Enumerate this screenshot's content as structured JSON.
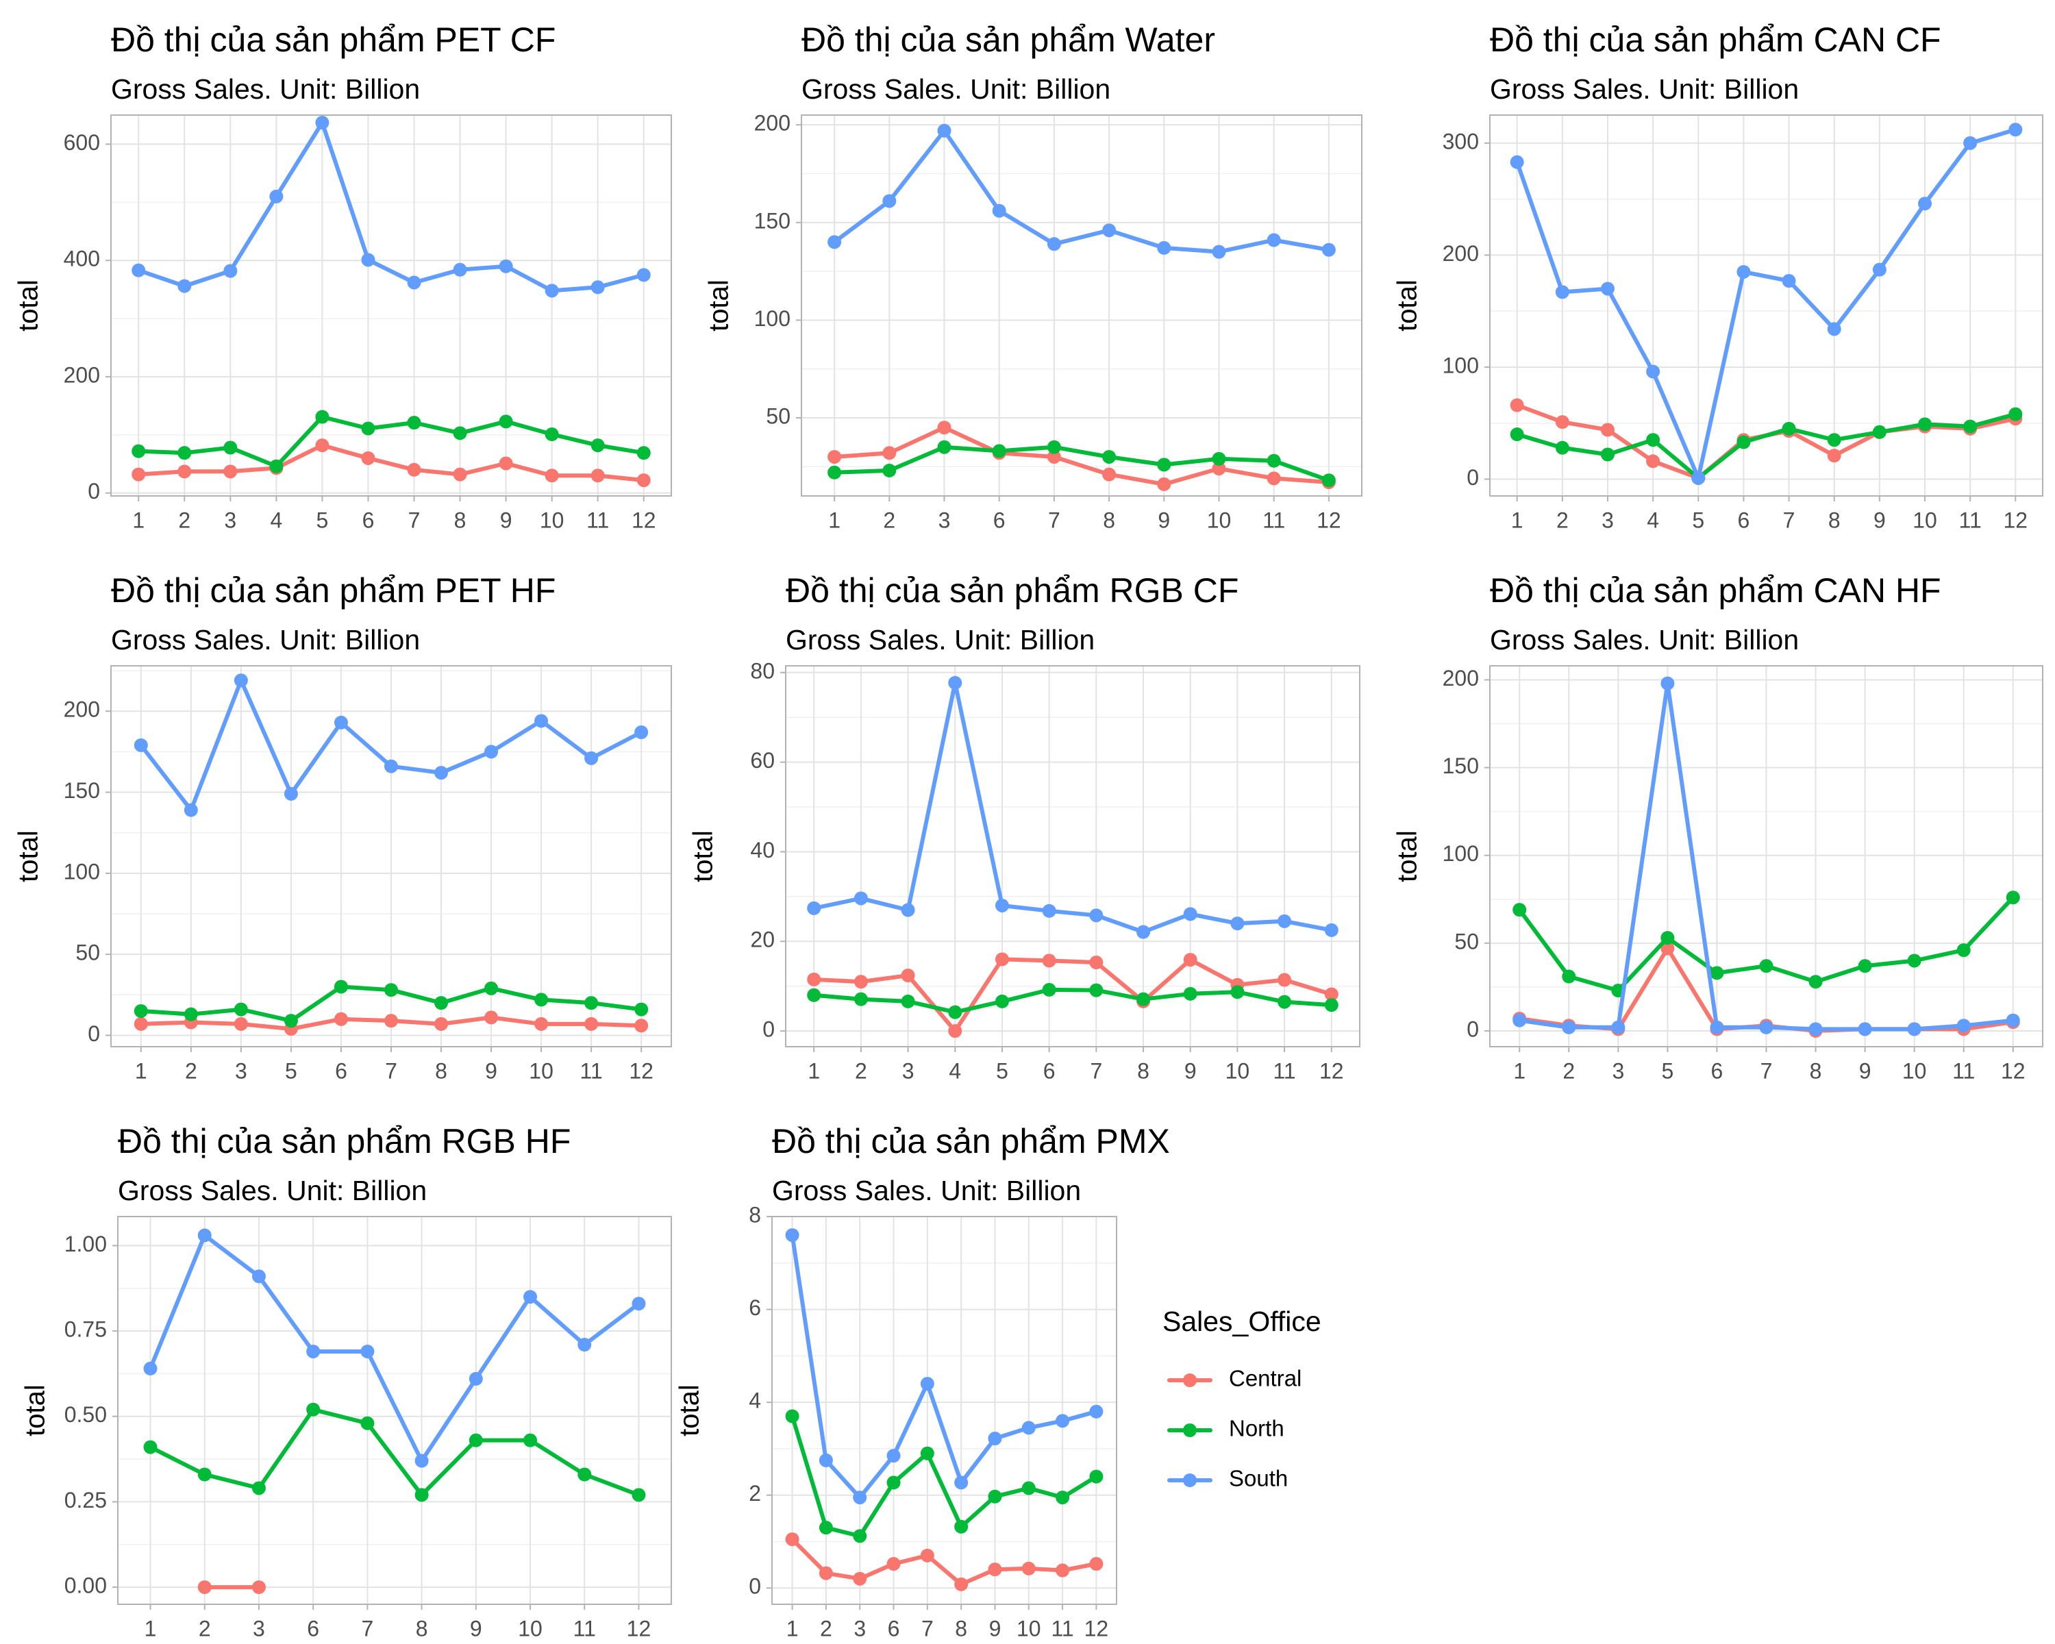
{
  "colors": {
    "Central": "#F8766D",
    "North": "#00BA38",
    "South": "#619CFF"
  },
  "legend": {
    "title": "Sales_Office",
    "entries": [
      "Central",
      "North",
      "South"
    ]
  },
  "chart_data": [
    {
      "type": "line",
      "title": "Đồ thị của sản phẩm PET CF",
      "subtitle": "Gross Sales. Unit: Billion",
      "ylabel": "total",
      "x": [
        1,
        2,
        3,
        4,
        5,
        6,
        7,
        8,
        9,
        10,
        11,
        12
      ],
      "ylim": [
        -5,
        650
      ],
      "yticks": [
        0,
        200,
        400,
        600
      ],
      "ytick_labels": [
        "0",
        "200",
        "400",
        "600"
      ],
      "series": [
        {
          "name": "Central",
          "values": [
            32,
            37,
            37,
            43,
            82,
            60,
            40,
            32,
            51,
            30,
            30,
            22
          ]
        },
        {
          "name": "North",
          "values": [
            72,
            69,
            78,
            46,
            131,
            111,
            121,
            103,
            123,
            101,
            82,
            69
          ]
        },
        {
          "name": "South",
          "values": [
            383,
            356,
            382,
            510,
            637,
            401,
            362,
            384,
            390,
            348,
            354,
            375
          ]
        }
      ]
    },
    {
      "type": "line",
      "title": "Đồ thị của sản phẩm Water",
      "subtitle": "Gross Sales. Unit: Billion",
      "ylabel": "total",
      "x": [
        1,
        2,
        3,
        6,
        7,
        8,
        9,
        10,
        11,
        12
      ],
      "ylim": [
        10,
        205
      ],
      "yticks": [
        50,
        100,
        150,
        200
      ],
      "ytick_labels": [
        "50",
        "100",
        "150",
        "200"
      ],
      "series": [
        {
          "name": "Central",
          "values": [
            30,
            32,
            45,
            32,
            30,
            21,
            16,
            24,
            19,
            17
          ]
        },
        {
          "name": "North",
          "values": [
            22,
            23,
            35,
            33,
            35,
            30,
            26,
            29,
            28,
            18
          ]
        },
        {
          "name": "South",
          "values": [
            140,
            161,
            197,
            156,
            139,
            146,
            137,
            135,
            141,
            136
          ]
        }
      ]
    },
    {
      "type": "line",
      "title": "Đồ thị của sản phẩm CAN CF",
      "subtitle": "Gross Sales. Unit: Billion",
      "ylabel": "total",
      "x": [
        1,
        2,
        3,
        4,
        5,
        6,
        7,
        8,
        9,
        10,
        11,
        12
      ],
      "ylim": [
        -15,
        325
      ],
      "yticks": [
        0,
        100,
        200,
        300
      ],
      "ytick_labels": [
        "0",
        "100",
        "200",
        "300"
      ],
      "series": [
        {
          "name": "Central",
          "values": [
            66,
            51,
            44,
            16,
            1,
            35,
            43,
            21,
            42,
            47,
            45,
            54
          ]
        },
        {
          "name": "North",
          "values": [
            40,
            28,
            22,
            35,
            1,
            33,
            45,
            35,
            42,
            49,
            47,
            58
          ]
        },
        {
          "name": "South",
          "values": [
            283,
            167,
            170,
            96,
            1,
            185,
            177,
            134,
            187,
            246,
            300,
            312
          ]
        }
      ]
    },
    {
      "type": "line",
      "title": "Đồ thị của sản phẩm PET HF",
      "subtitle": "Gross Sales. Unit: Billion",
      "ylabel": "total",
      "x": [
        1,
        2,
        3,
        5,
        6,
        7,
        8,
        9,
        10,
        11,
        12
      ],
      "ylim": [
        -7,
        228
      ],
      "yticks": [
        0,
        50,
        100,
        150,
        200
      ],
      "ytick_labels": [
        "0",
        "50",
        "100",
        "150",
        "200"
      ],
      "series": [
        {
          "name": "Central",
          "values": [
            7,
            8,
            7,
            4,
            10,
            9,
            7,
            11,
            7,
            7,
            6
          ]
        },
        {
          "name": "North",
          "values": [
            15,
            13,
            16,
            9,
            30,
            28,
            20,
            29,
            22,
            20,
            16
          ]
        },
        {
          "name": "South",
          "values": [
            179,
            139,
            219,
            149,
            193,
            166,
            162,
            175,
            194,
            171,
            187
          ]
        }
      ]
    },
    {
      "type": "line",
      "title": "Đồ thị của sản phẩm RGB CF",
      "subtitle": "Gross Sales. Unit: Billion",
      "ylabel": "total",
      "x": [
        1,
        2,
        3,
        4,
        5,
        6,
        7,
        8,
        9,
        10,
        11,
        12
      ],
      "ylim": [
        -3.5,
        81.5
      ],
      "yticks": [
        0,
        20,
        40,
        60,
        80
      ],
      "ytick_labels": [
        "0",
        "20",
        "40",
        "60",
        "80"
      ],
      "series": [
        {
          "name": "Central",
          "values": [
            11.5,
            11,
            12.4,
            0,
            16,
            15.7,
            15.3,
            6.6,
            15.9,
            10.3,
            11.4,
            8.2
          ]
        },
        {
          "name": "North",
          "values": [
            8,
            7.1,
            6.6,
            4.2,
            6.6,
            9.2,
            9.1,
            7.1,
            8.3,
            8.7,
            6.5,
            5.8
          ]
        },
        {
          "name": "South",
          "values": [
            27.4,
            29.6,
            27,
            77.7,
            28,
            26.8,
            25.8,
            22.1,
            26.1,
            24,
            24.5,
            22.5
          ]
        }
      ]
    },
    {
      "type": "line",
      "title": "Đồ thị của sản phẩm CAN HF",
      "subtitle": "Gross Sales. Unit: Billion",
      "ylabel": "total",
      "x": [
        1,
        2,
        3,
        5,
        6,
        7,
        8,
        9,
        10,
        11,
        12
      ],
      "ylim": [
        -9,
        208
      ],
      "yticks": [
        0,
        50,
        100,
        150,
        200
      ],
      "ytick_labels": [
        "0",
        "50",
        "100",
        "150",
        "200"
      ],
      "series": [
        {
          "name": "Central",
          "values": [
            7,
            3,
            1,
            47,
            1,
            3,
            0,
            1,
            1,
            1,
            5
          ]
        },
        {
          "name": "North",
          "values": [
            69,
            31,
            23,
            53,
            33,
            37,
            28,
            37,
            40,
            46,
            76
          ]
        },
        {
          "name": "South",
          "values": [
            6,
            2,
            2,
            198,
            2,
            2,
            1,
            1,
            1,
            3,
            6
          ]
        }
      ]
    },
    {
      "type": "line",
      "title": "Đồ thị của sản phẩm RGB HF",
      "subtitle": "Gross Sales. Unit: Billion",
      "ylabel": "total",
      "x": [
        1,
        2,
        3,
        6,
        7,
        8,
        9,
        10,
        11,
        12
      ],
      "ylim": [
        -0.05,
        1.085
      ],
      "yticks": [
        0,
        0.25,
        0.5,
        0.75,
        1
      ],
      "ytick_labels": [
        "0.00",
        "0.25",
        "0.50",
        "0.75",
        "1.00"
      ],
      "series": [
        {
          "name": "Central",
          "values": [
            null,
            0,
            0,
            null,
            null,
            null,
            null,
            null,
            null,
            null
          ]
        },
        {
          "name": "North",
          "values": [
            0.41,
            0.33,
            0.29,
            0.52,
            0.48,
            0.27,
            0.43,
            0.43,
            0.33,
            0.27
          ]
        },
        {
          "name": "South",
          "values": [
            0.64,
            1.03,
            0.91,
            0.69,
            0.69,
            0.37,
            0.61,
            0.85,
            0.71,
            0.83
          ]
        }
      ]
    },
    {
      "type": "line",
      "title": "Đồ thị của sản phẩm PMX",
      "subtitle": "Gross Sales. Unit: Billion",
      "ylabel": "total",
      "x": [
        1,
        2,
        3,
        6,
        7,
        8,
        9,
        10,
        11,
        12
      ],
      "ylim": [
        -0.35,
        8
      ],
      "yticks": [
        0,
        2,
        4,
        6,
        8
      ],
      "ytick_labels": [
        "0",
        "2",
        "4",
        "6",
        "8"
      ],
      "series": [
        {
          "name": "Central",
          "values": [
            1.05,
            0.32,
            0.2,
            0.52,
            0.7,
            0.08,
            0.4,
            0.42,
            0.38,
            0.52
          ]
        },
        {
          "name": "North",
          "values": [
            3.7,
            1.3,
            1.12,
            2.27,
            2.9,
            1.32,
            1.97,
            2.15,
            1.95,
            2.4
          ]
        },
        {
          "name": "South",
          "values": [
            7.6,
            2.75,
            1.95,
            2.85,
            4.4,
            2.27,
            3.22,
            3.45,
            3.6,
            3.8
          ]
        }
      ]
    }
  ]
}
